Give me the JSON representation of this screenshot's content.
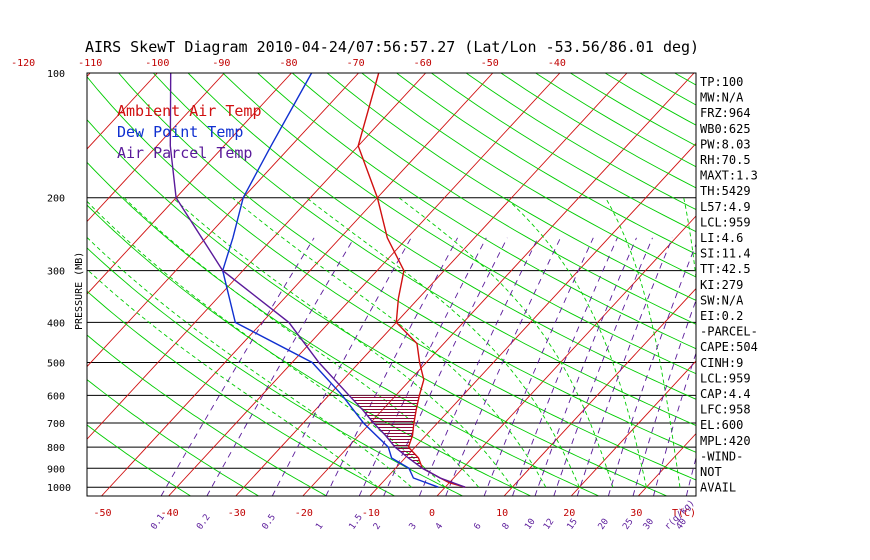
{
  "title": "AIRS SkewT Diagram 2010-04-24/07:56:57.27 (Lat/Lon -53.56/86.01 deg)",
  "legend": [
    {
      "label": "Ambient Air Temp",
      "color": "#d01010"
    },
    {
      "label": "Dew Point Temp",
      "color": "#1030d0"
    },
    {
      "label": "Air Parcel Temp",
      "color": "#5a1a9a"
    }
  ],
  "colors": {
    "isobar": "#000000",
    "isotherm": "#d01010",
    "dry_adiabat": "#00cc00",
    "moist_adiabat": "#00cc00",
    "mixing_ratio": "#5a1a9a",
    "cape_hatch": "#8a0a3a"
  },
  "chart_data": {
    "type": "line",
    "title": "AIRS SkewT Diagram 2010-04-24/07:56:57.27 (Lat/Lon -53.56/86.01 deg)",
    "ylabel": "PRESSURE (MB)",
    "xlabel": "T(C)",
    "pressure_ticks": [
      "100",
      "200",
      "300",
      "400",
      "500",
      "600",
      "700",
      "800",
      "900",
      "1000"
    ],
    "bottom_temp_ticks": [
      "-50",
      "-40",
      "-30",
      "-20",
      "-10",
      "0",
      "10",
      "20",
      "30"
    ],
    "top_temp_ticks": [
      "-120",
      "-110",
      "-100",
      "-90",
      "-80",
      "-70",
      "-60",
      "-50",
      "-40"
    ],
    "bottom_tick_values": [
      -50,
      -40,
      -30,
      -20,
      -10,
      0,
      10,
      20,
      30
    ],
    "top_tick_values": [
      -120,
      -110,
      -100,
      -90,
      -80,
      -70,
      -60,
      -50,
      -40
    ],
    "mixing_ratio_labels": [
      "0.1",
      "0.2",
      "0.5",
      "1",
      "1.5",
      "2",
      "3",
      "4",
      "6",
      "8",
      "10",
      "12",
      "15",
      "20",
      "25",
      "30",
      "40",
      "r(g/kg)"
    ],
    "series": [
      {
        "name": "Ambient Air Temp",
        "points": [
          [
            1000,
            3
          ],
          [
            975,
            0
          ],
          [
            950,
            -2
          ],
          [
            900,
            -6
          ],
          [
            850,
            -8
          ],
          [
            800,
            -11
          ],
          [
            750,
            -12
          ],
          [
            700,
            -13.5
          ],
          [
            650,
            -15
          ],
          [
            600,
            -16.5
          ],
          [
            550,
            -18
          ],
          [
            500,
            -21
          ],
          [
            450,
            -24
          ],
          [
            400,
            -30
          ],
          [
            350,
            -33
          ],
          [
            300,
            -36
          ],
          [
            250,
            -43
          ],
          [
            200,
            -50
          ],
          [
            150,
            -60
          ],
          [
            100,
            -67
          ]
        ]
      },
      {
        "name": "Dew Point Temp",
        "points": [
          [
            1000,
            -1
          ],
          [
            950,
            -6
          ],
          [
            900,
            -8
          ],
          [
            850,
            -12
          ],
          [
            800,
            -14
          ],
          [
            700,
            -21
          ],
          [
            600,
            -28
          ],
          [
            500,
            -37
          ],
          [
            400,
            -54
          ],
          [
            300,
            -63
          ],
          [
            250,
            -66
          ],
          [
            200,
            -70
          ],
          [
            150,
            -73
          ],
          [
            100,
            -77
          ]
        ]
      },
      {
        "name": "Air Parcel Temp",
        "points": [
          [
            1000,
            3
          ],
          [
            950,
            -2
          ],
          [
            900,
            -6
          ],
          [
            850,
            -9.5
          ],
          [
            800,
            -13
          ],
          [
            750,
            -16
          ],
          [
            700,
            -19.5
          ],
          [
            650,
            -23
          ],
          [
            600,
            -27
          ],
          [
            500,
            -36
          ],
          [
            400,
            -46
          ],
          [
            300,
            -63
          ],
          [
            200,
            -80
          ],
          [
            150,
            -88
          ],
          [
            100,
            -98
          ]
        ]
      }
    ]
  },
  "indices": [
    "TP:100",
    "MW:N/A",
    "FRZ:964",
    "WB0:625",
    "PW:8.03",
    "RH:70.5",
    "MAXT:1.3",
    "TH:5429",
    "L57:4.9",
    "LCL:959",
    "LI:4.6",
    "SI:11.4",
    "TT:42.5",
    "KI:279",
    "SW:N/A",
    "EI:0.2",
    "-PARCEL-",
    "CAPE:504",
    "CINH:9",
    "LCL:959",
    "CAP:4.4",
    "LFC:958",
    "EL:600",
    "MPL:420",
    "-WIND-",
    "NOT",
    "AVAIL"
  ]
}
